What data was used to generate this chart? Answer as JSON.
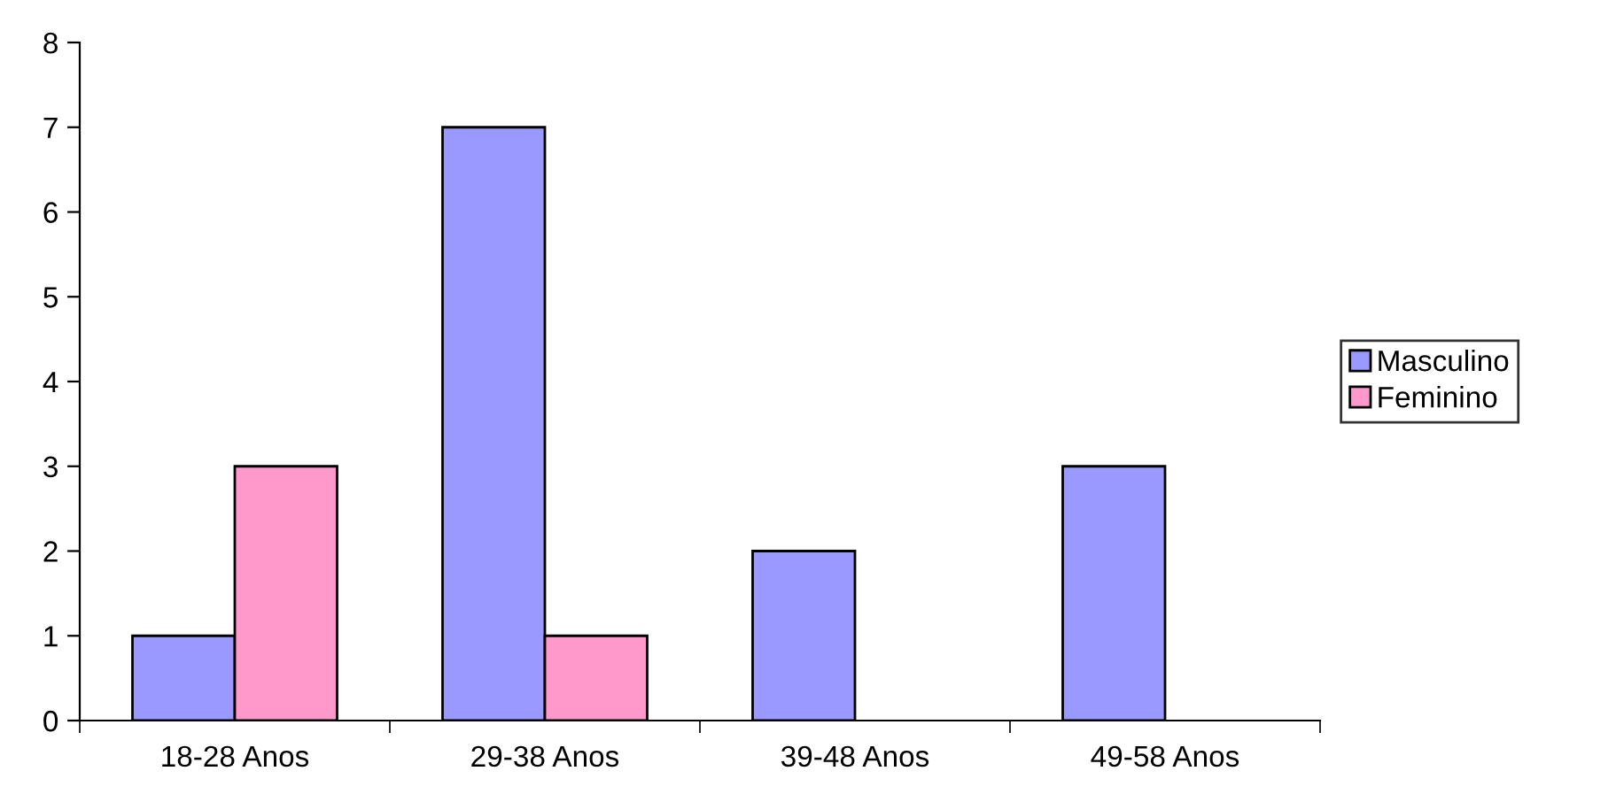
{
  "chart_data": {
    "type": "bar",
    "categories": [
      "18-28 Anos",
      "29-38 Anos",
      "39-48 Anos",
      "49-58 Anos"
    ],
    "series": [
      {
        "name": "Masculino",
        "color": "#9999ff",
        "values": [
          1,
          7,
          2,
          3
        ]
      },
      {
        "name": "Feminino",
        "color": "#ff99cc",
        "values": [
          3,
          1,
          null,
          null
        ]
      }
    ],
    "ylim": [
      0,
      8
    ],
    "yticks": [
      0,
      1,
      2,
      3,
      4,
      5,
      6,
      7,
      8
    ],
    "grid": false,
    "legend": "right"
  }
}
